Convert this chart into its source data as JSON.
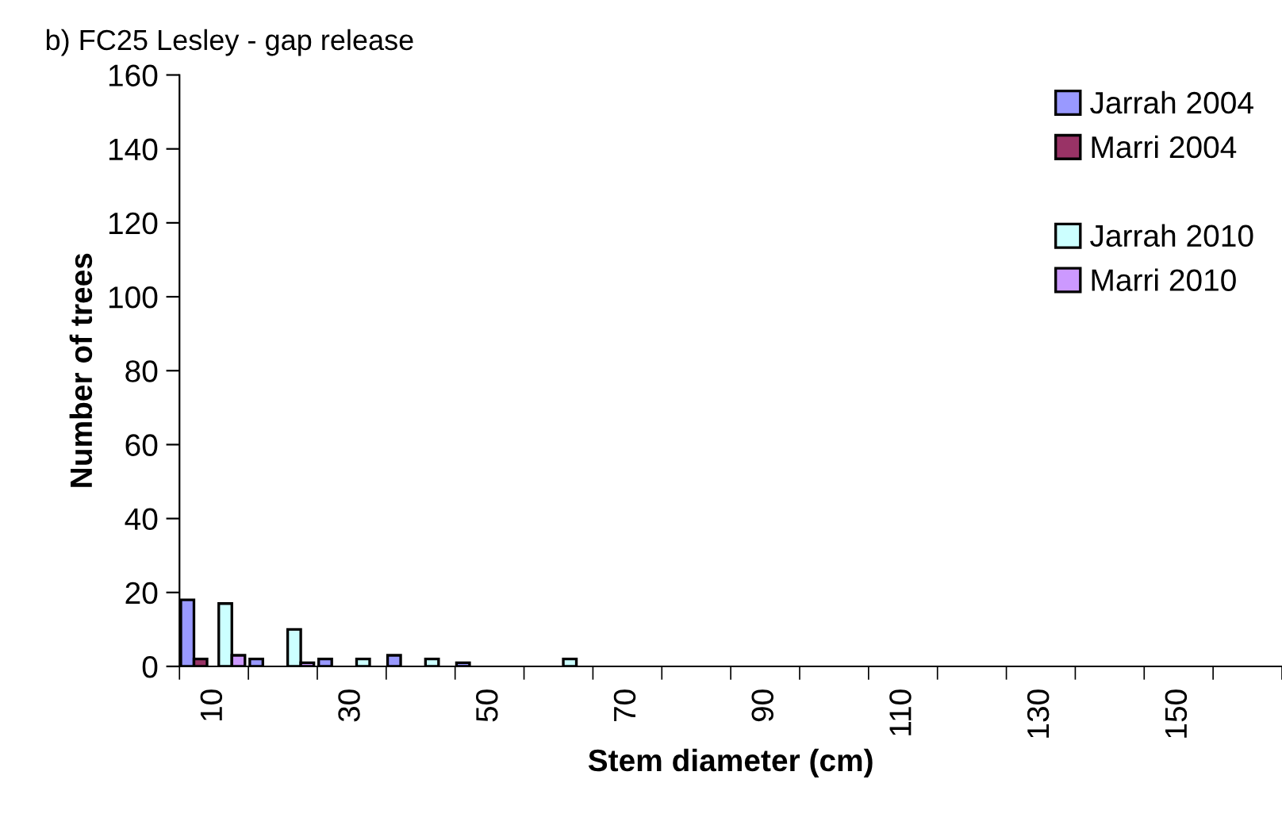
{
  "chart_data": {
    "type": "bar",
    "title": "b) FC25 Lesley - gap release",
    "xlabel": "Stem diameter (cm)",
    "ylabel": "Number of trees",
    "categories": [
      "10",
      null,
      "30",
      null,
      "50",
      null,
      "70",
      null,
      "90",
      null,
      "110",
      null,
      "130",
      null,
      "150",
      null
    ],
    "series": [
      {
        "name": "Jarrah 2004",
        "color": "#9999ff",
        "values": [
          18,
          2,
          2,
          3,
          1,
          0,
          0,
          0,
          0,
          0,
          0,
          0,
          0,
          0,
          0,
          0
        ]
      },
      {
        "name": "Marri 2004",
        "color": "#993366",
        "values": [
          2,
          0,
          0,
          0,
          0,
          0,
          0,
          0,
          0,
          0,
          0,
          0,
          0,
          0,
          0,
          0
        ]
      },
      {
        "name": "Jarrah 2010",
        "color": "#ccffff",
        "values": [
          17,
          10,
          2,
          2,
          0,
          2,
          0,
          0,
          0,
          0,
          0,
          0,
          0,
          0,
          0,
          0
        ]
      },
      {
        "name": "Marri 2010",
        "color": "#cc99ff",
        "values": [
          3,
          1,
          0,
          0,
          0,
          0,
          0,
          0,
          0,
          0,
          0,
          0,
          0,
          0,
          0,
          0
        ]
      }
    ],
    "ylim": [
      0,
      160
    ],
    "yticks": [
      0,
      20,
      40,
      60,
      80,
      100,
      120,
      140,
      160
    ],
    "grid": false,
    "legend": "top right"
  }
}
